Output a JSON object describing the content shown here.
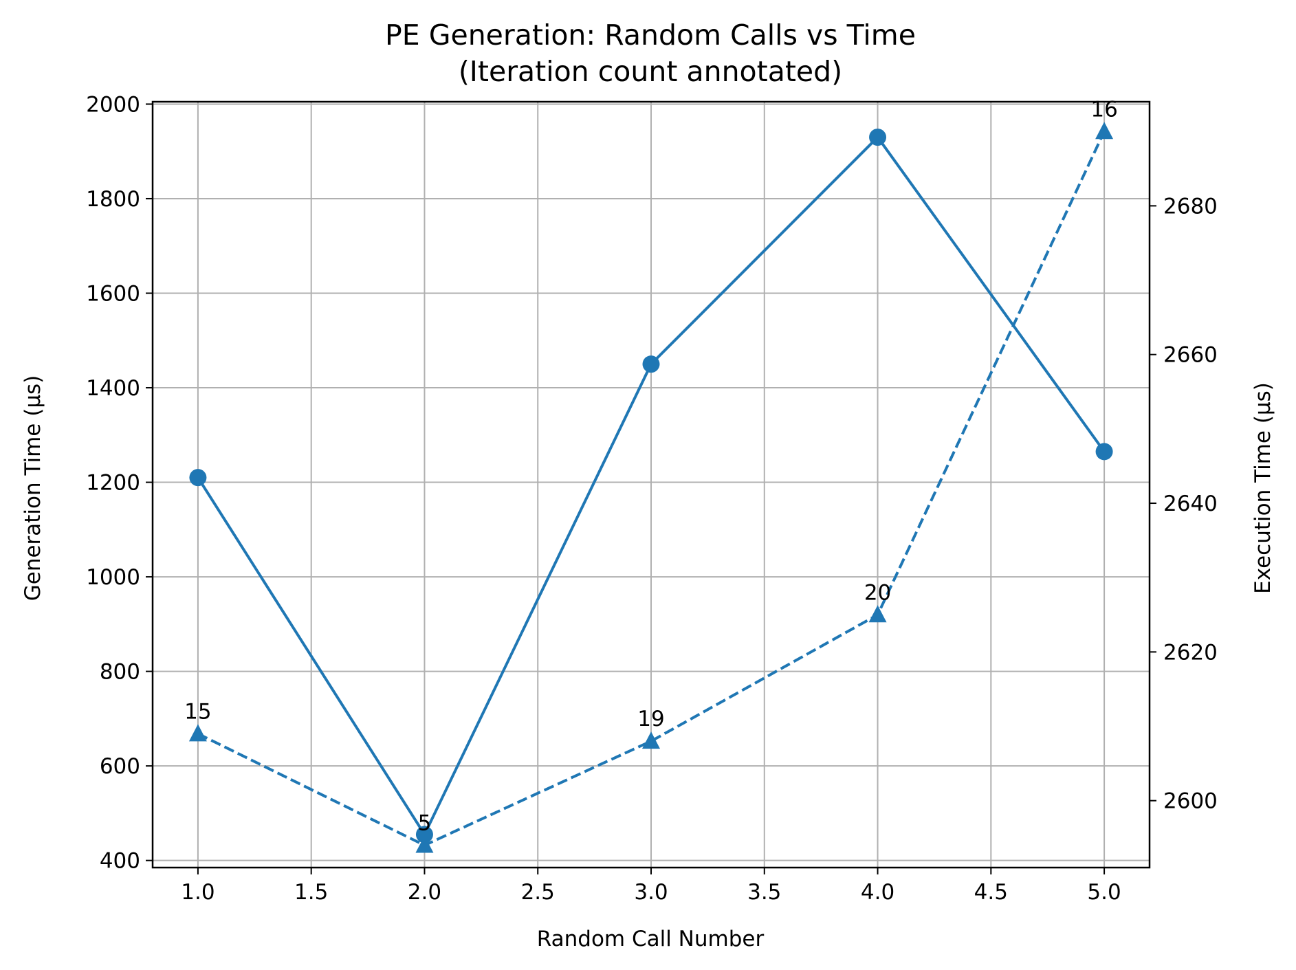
{
  "chart_data": {
    "type": "line",
    "title": "PE Generation: Random Calls vs Time",
    "subtitle": "(Iteration count annotated)",
    "xlabel": "Random Call Number",
    "ylabel_left": "Generation Time (µs)",
    "ylabel_right": "Execution Time (µs)",
    "xlim": [
      0.8,
      5.2
    ],
    "ylim_left": [
      385,
      2005
    ],
    "ylim_right": [
      2591,
      2694
    ],
    "x_ticks": [
      1.0,
      1.5,
      2.0,
      2.5,
      3.0,
      3.5,
      4.0,
      4.5,
      5.0
    ],
    "x_tick_labels": [
      "1.0",
      "1.5",
      "2.0",
      "2.5",
      "3.0",
      "3.5",
      "4.0",
      "4.5",
      "5.0"
    ],
    "y_left_ticks": [
      400,
      600,
      800,
      1000,
      1200,
      1400,
      1600,
      1800,
      2000
    ],
    "y_left_tick_labels": [
      "400",
      "600",
      "800",
      "1000",
      "1200",
      "1400",
      "1600",
      "1800",
      "2000"
    ],
    "y_right_ticks": [
      2600,
      2620,
      2640,
      2660,
      2680
    ],
    "y_right_tick_labels": [
      "2600",
      "2620",
      "2640",
      "2660",
      "2680"
    ],
    "grid": true,
    "color": "#1f77b4",
    "x": [
      1,
      2,
      3,
      4,
      5
    ],
    "series": [
      {
        "axis": "left",
        "marker": "circle",
        "line_style": "solid",
        "values": [
          1210,
          455,
          1450,
          1930,
          1265
        ]
      },
      {
        "axis": "right",
        "marker": "triangle",
        "line_style": "dashed",
        "values": [
          2609,
          2594,
          2608,
          2625,
          2690
        ],
        "annotations": [
          "15",
          "5",
          "19",
          "20",
          "16"
        ]
      }
    ]
  }
}
